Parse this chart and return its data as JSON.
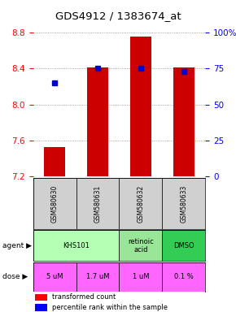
{
  "title": "GDS4912 / 1383674_at",
  "samples": [
    "GSM580630",
    "GSM580631",
    "GSM580632",
    "GSM580633"
  ],
  "bar_values": [
    7.53,
    8.41,
    8.76,
    8.41
  ],
  "bar_bottom": 7.2,
  "percentile_values": [
    65,
    75,
    75,
    73
  ],
  "ylim": [
    7.2,
    8.8
  ],
  "yticks": [
    7.2,
    7.6,
    8.0,
    8.4,
    8.8
  ],
  "right_yticks": [
    0,
    25,
    50,
    75,
    100
  ],
  "right_ytick_labels": [
    "0",
    "25",
    "50",
    "75",
    "100%"
  ],
  "bar_color": "#cc0000",
  "percentile_color": "#0000cc",
  "dose_row": [
    "5 uM",
    "1.7 uM",
    "1 uM",
    "0.1 %"
  ],
  "dose_color": "#ff66ff",
  "sample_bg_color": "#d0d0d0",
  "legend_red_label": "transformed count",
  "legend_blue_label": "percentile rank within the sample",
  "background_color": "#ffffff",
  "agent_data": [
    [
      0,
      1,
      "KHS101",
      "#b3ffb3"
    ],
    [
      2,
      2,
      "retinoic\nacid",
      "#99e699"
    ],
    [
      3,
      3,
      "DMSO",
      "#33cc55"
    ]
  ]
}
